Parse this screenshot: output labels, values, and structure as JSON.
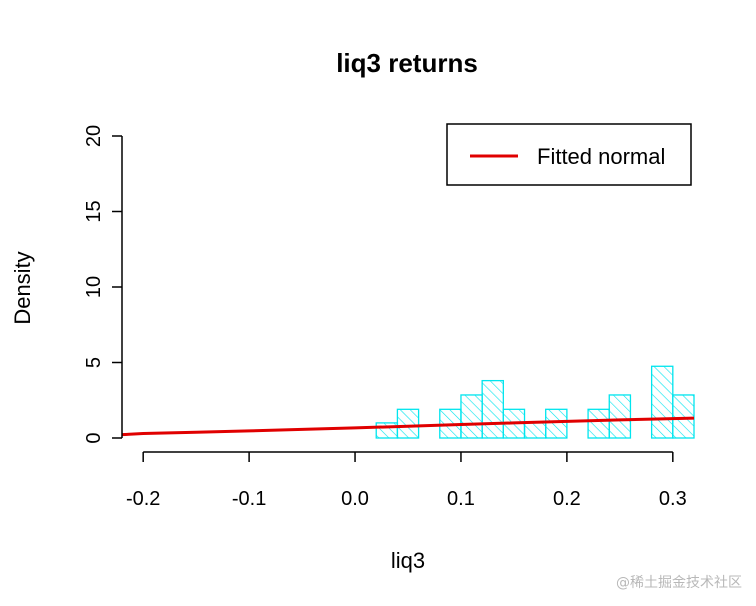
{
  "chart_data": {
    "type": "bar",
    "subtype": "histogram",
    "title": "liq3 returns",
    "xlabel": "liq3",
    "ylabel": "Density",
    "xlim": [
      -0.22,
      0.32
    ],
    "ylim": [
      0,
      20
    ],
    "xticks": [
      -0.2,
      -0.1,
      0.0,
      0.1,
      0.2,
      0.3
    ],
    "xtick_labels": [
      "-0.2",
      "-0.1",
      "0.0",
      "0.1",
      "0.2",
      "0.3"
    ],
    "yticks": [
      0,
      5,
      10,
      15,
      20
    ],
    "ytick_labels": [
      "0",
      "5",
      "10",
      "15",
      "20"
    ],
    "bin_width": 0.02,
    "bins": [
      {
        "x0": 0.02,
        "x1": 0.04,
        "density": 1.0
      },
      {
        "x0": 0.04,
        "x1": 0.06,
        "density": 1.9
      },
      {
        "x0": 0.06,
        "x1": 0.08,
        "density": 0.0
      },
      {
        "x0": 0.08,
        "x1": 0.1,
        "density": 1.9
      },
      {
        "x0": 0.1,
        "x1": 0.12,
        "density": 2.85
      },
      {
        "x0": 0.12,
        "x1": 0.14,
        "density": 3.8
      },
      {
        "x0": 0.14,
        "x1": 0.16,
        "density": 1.9
      },
      {
        "x0": 0.16,
        "x1": 0.18,
        "density": 1.0
      },
      {
        "x0": 0.18,
        "x1": 0.2,
        "density": 1.9
      },
      {
        "x0": 0.2,
        "x1": 0.22,
        "density": 0.0
      },
      {
        "x0": 0.22,
        "x1": 0.24,
        "density": 1.9
      },
      {
        "x0": 0.24,
        "x1": 0.26,
        "density": 2.85
      },
      {
        "x0": 0.26,
        "x1": 0.28,
        "density": 0.0
      },
      {
        "x0": 0.28,
        "x1": 0.3,
        "density": 4.75
      },
      {
        "x0": 0.3,
        "x1": 0.32,
        "density": 2.85
      }
    ],
    "fitted_line": {
      "name": "Fitted normal",
      "x": [
        -0.22,
        -0.2,
        -0.15,
        -0.1,
        -0.05,
        0.0,
        0.05,
        0.1,
        0.15,
        0.2,
        0.25,
        0.32
      ],
      "y": [
        0.22,
        0.3,
        0.38,
        0.47,
        0.57,
        0.67,
        0.78,
        0.89,
        1.0,
        1.1,
        1.2,
        1.32
      ]
    },
    "legend": {
      "position": "top-right",
      "entries": [
        "Fitted normal"
      ]
    },
    "colors": {
      "hist": "#00e5ee",
      "line": "#e00000",
      "axis": "#000000"
    }
  },
  "watermark": "@稀土掘金技术社区"
}
